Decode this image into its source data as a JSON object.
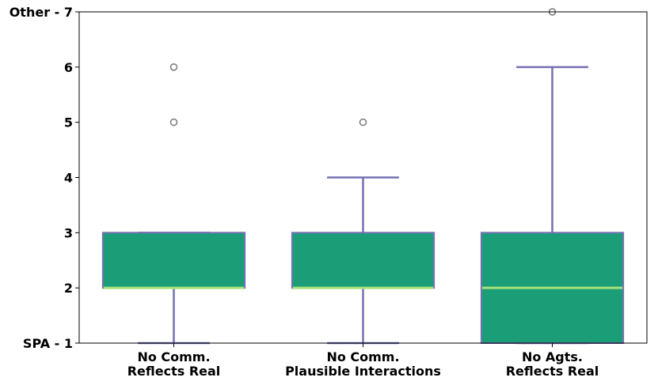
{
  "chart_data": {
    "type": "box",
    "title": "",
    "xlabel": "",
    "ylabel": "",
    "ylim": [
      1,
      7
    ],
    "y_ticks": [
      {
        "value": 1,
        "label": "SPA - 1"
      },
      {
        "value": 2,
        "label": "2"
      },
      {
        "value": 3,
        "label": "3"
      },
      {
        "value": 4,
        "label": "4"
      },
      {
        "value": 5,
        "label": "5"
      },
      {
        "value": 6,
        "label": "6"
      },
      {
        "value": 7,
        "label": "Other - 7"
      }
    ],
    "categories": [
      [
        "No Comm.",
        "Reflects Real"
      ],
      [
        "No Comm.",
        "Plausible Interactions"
      ],
      [
        "No Agts.",
        "Reflects Real"
      ]
    ],
    "boxes": [
      {
        "q1": 2,
        "median": 2,
        "q3": 3,
        "whisker_low": 1,
        "whisker_high": 3,
        "outliers": [
          5,
          6
        ]
      },
      {
        "q1": 2,
        "median": 2,
        "q3": 3,
        "whisker_low": 1,
        "whisker_high": 4,
        "outliers": [
          5
        ]
      },
      {
        "q1": 1,
        "median": 2,
        "q3": 3,
        "whisker_low": 1,
        "whisker_high": 6,
        "outliers": [
          7
        ]
      }
    ],
    "colors": {
      "box_fill": "#1b9e77",
      "box_edge": "#7570b3",
      "median": "#a6e27a",
      "whisker": "#7570b3",
      "outlier": "#777777"
    },
    "grid": false,
    "legend": "none"
  }
}
